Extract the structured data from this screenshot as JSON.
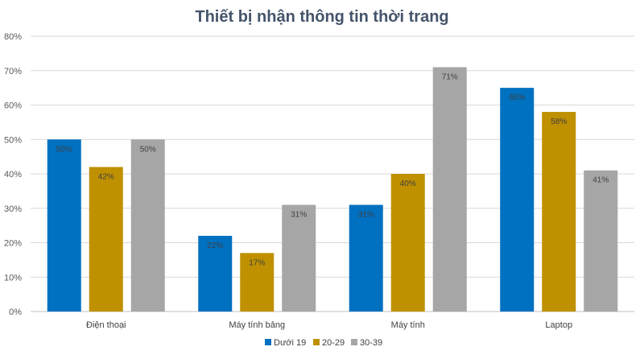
{
  "chart_data": {
    "type": "bar",
    "title": "Thiết bị nhận thông tin thời trang",
    "xlabel": "",
    "ylabel": "",
    "ylim": [
      0,
      80
    ],
    "y_ticks": [
      "0%",
      "10%",
      "20%",
      "30%",
      "40%",
      "50%",
      "60%",
      "70%",
      "80%"
    ],
    "grid": true,
    "legend_position": "bottom-right",
    "categories": [
      "Điện thoại",
      "Máy tính bảng",
      "Máy tính",
      "Laptop"
    ],
    "series": [
      {
        "name": "Dưới 19",
        "color": "#0070c0",
        "values": [
          50,
          22,
          31,
          65
        ],
        "labels": [
          "50%",
          "22%",
          "31%",
          "65%"
        ]
      },
      {
        "name": "20-29",
        "color": "#bf9000",
        "values": [
          42,
          17,
          40,
          58
        ],
        "labels": [
          "42%",
          "17%",
          "40%",
          "58%"
        ]
      },
      {
        "name": "30-39",
        "color": "#a6a6a6",
        "values": [
          50,
          31,
          71,
          41
        ],
        "labels": [
          "50%",
          "31%",
          "71%",
          "41%"
        ]
      }
    ]
  }
}
